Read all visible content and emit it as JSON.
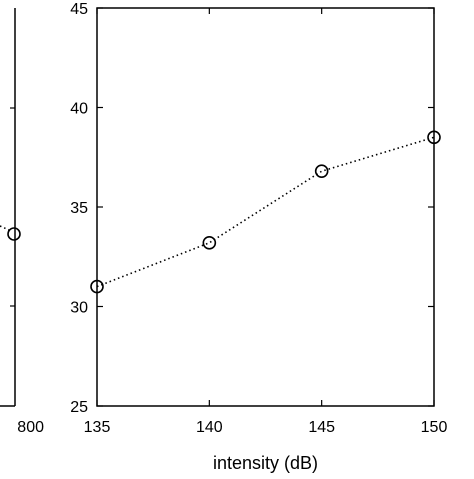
{
  "chart_data": [
    {
      "type": "scatter",
      "partial": true,
      "x_tick_labels": [
        "800"
      ],
      "y": 33.6
    },
    {
      "type": "line",
      "line_style": "dotted",
      "marker": "open-circle",
      "color": "#000000",
      "xlabel": "intensity (dB)",
      "ylabel": "",
      "title": "",
      "xlim": [
        135,
        150
      ],
      "ylim": [
        25,
        45
      ],
      "x_ticks": [
        135,
        140,
        145,
        150
      ],
      "y_ticks": [
        25,
        30,
        35,
        40,
        45
      ],
      "grid": false,
      "series": [
        {
          "x": [
            135,
            140,
            145,
            150
          ],
          "y": [
            31.0,
            33.2,
            36.8,
            38.5
          ]
        }
      ]
    }
  ]
}
